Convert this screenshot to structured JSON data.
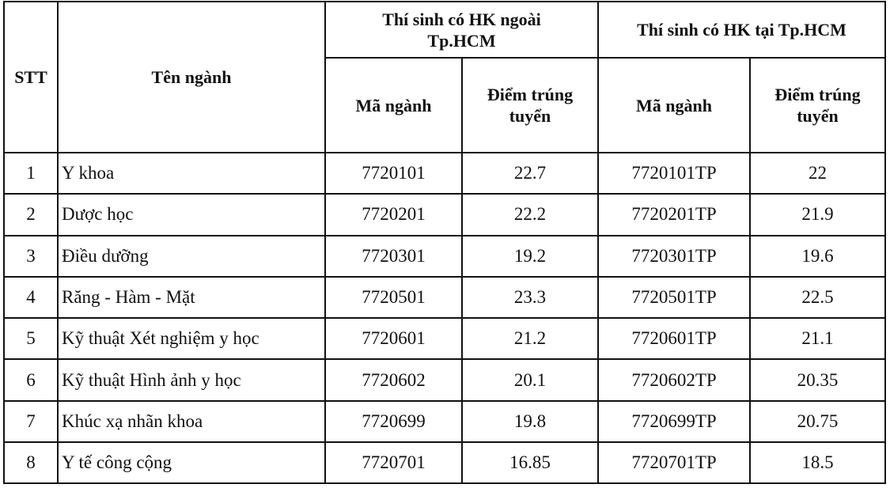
{
  "headers": {
    "stt": "STT",
    "name": "Tên ngành",
    "group_outside": "Thí sinh có HK ngoài Tp.HCM",
    "group_inside": "Thí sinh có HK tại Tp.HCM",
    "code": "Mã ngành",
    "score": "Điểm trúng tuyển"
  },
  "rows": [
    {
      "stt": "1",
      "name": "Y khoa",
      "code_out": "7720101",
      "score_out": "22.7",
      "code_in": "7720101TP",
      "score_in": "22"
    },
    {
      "stt": "2",
      "name": "Dược học",
      "code_out": "7720201",
      "score_out": "22.2",
      "code_in": "7720201TP",
      "score_in": "21.9"
    },
    {
      "stt": "3",
      "name": "Điều dưỡng",
      "code_out": "7720301",
      "score_out": "19.2",
      "code_in": "7720301TP",
      "score_in": "19.6"
    },
    {
      "stt": "4",
      "name": "Răng - Hàm - Mặt",
      "code_out": "7720501",
      "score_out": "23.3",
      "code_in": "7720501TP",
      "score_in": "22.5"
    },
    {
      "stt": "5",
      "name": "Kỹ thuật Xét nghiệm y học",
      "code_out": "7720601",
      "score_out": "21.2",
      "code_in": "7720601TP",
      "score_in": "21.1"
    },
    {
      "stt": "6",
      "name": "Kỹ thuật Hình ảnh y học",
      "code_out": "7720602",
      "score_out": "20.1",
      "code_in": "7720602TP",
      "score_in": "20.35"
    },
    {
      "stt": "7",
      "name": "Khúc xạ nhãn khoa",
      "code_out": "7720699",
      "score_out": "19.8",
      "code_in": "7720699TP",
      "score_in": "20.75"
    },
    {
      "stt": "8",
      "name": "Y tế công cộng",
      "code_out": "7720701",
      "score_out": "16.85",
      "code_in": "7720701TP",
      "score_in": "18.5"
    }
  ]
}
